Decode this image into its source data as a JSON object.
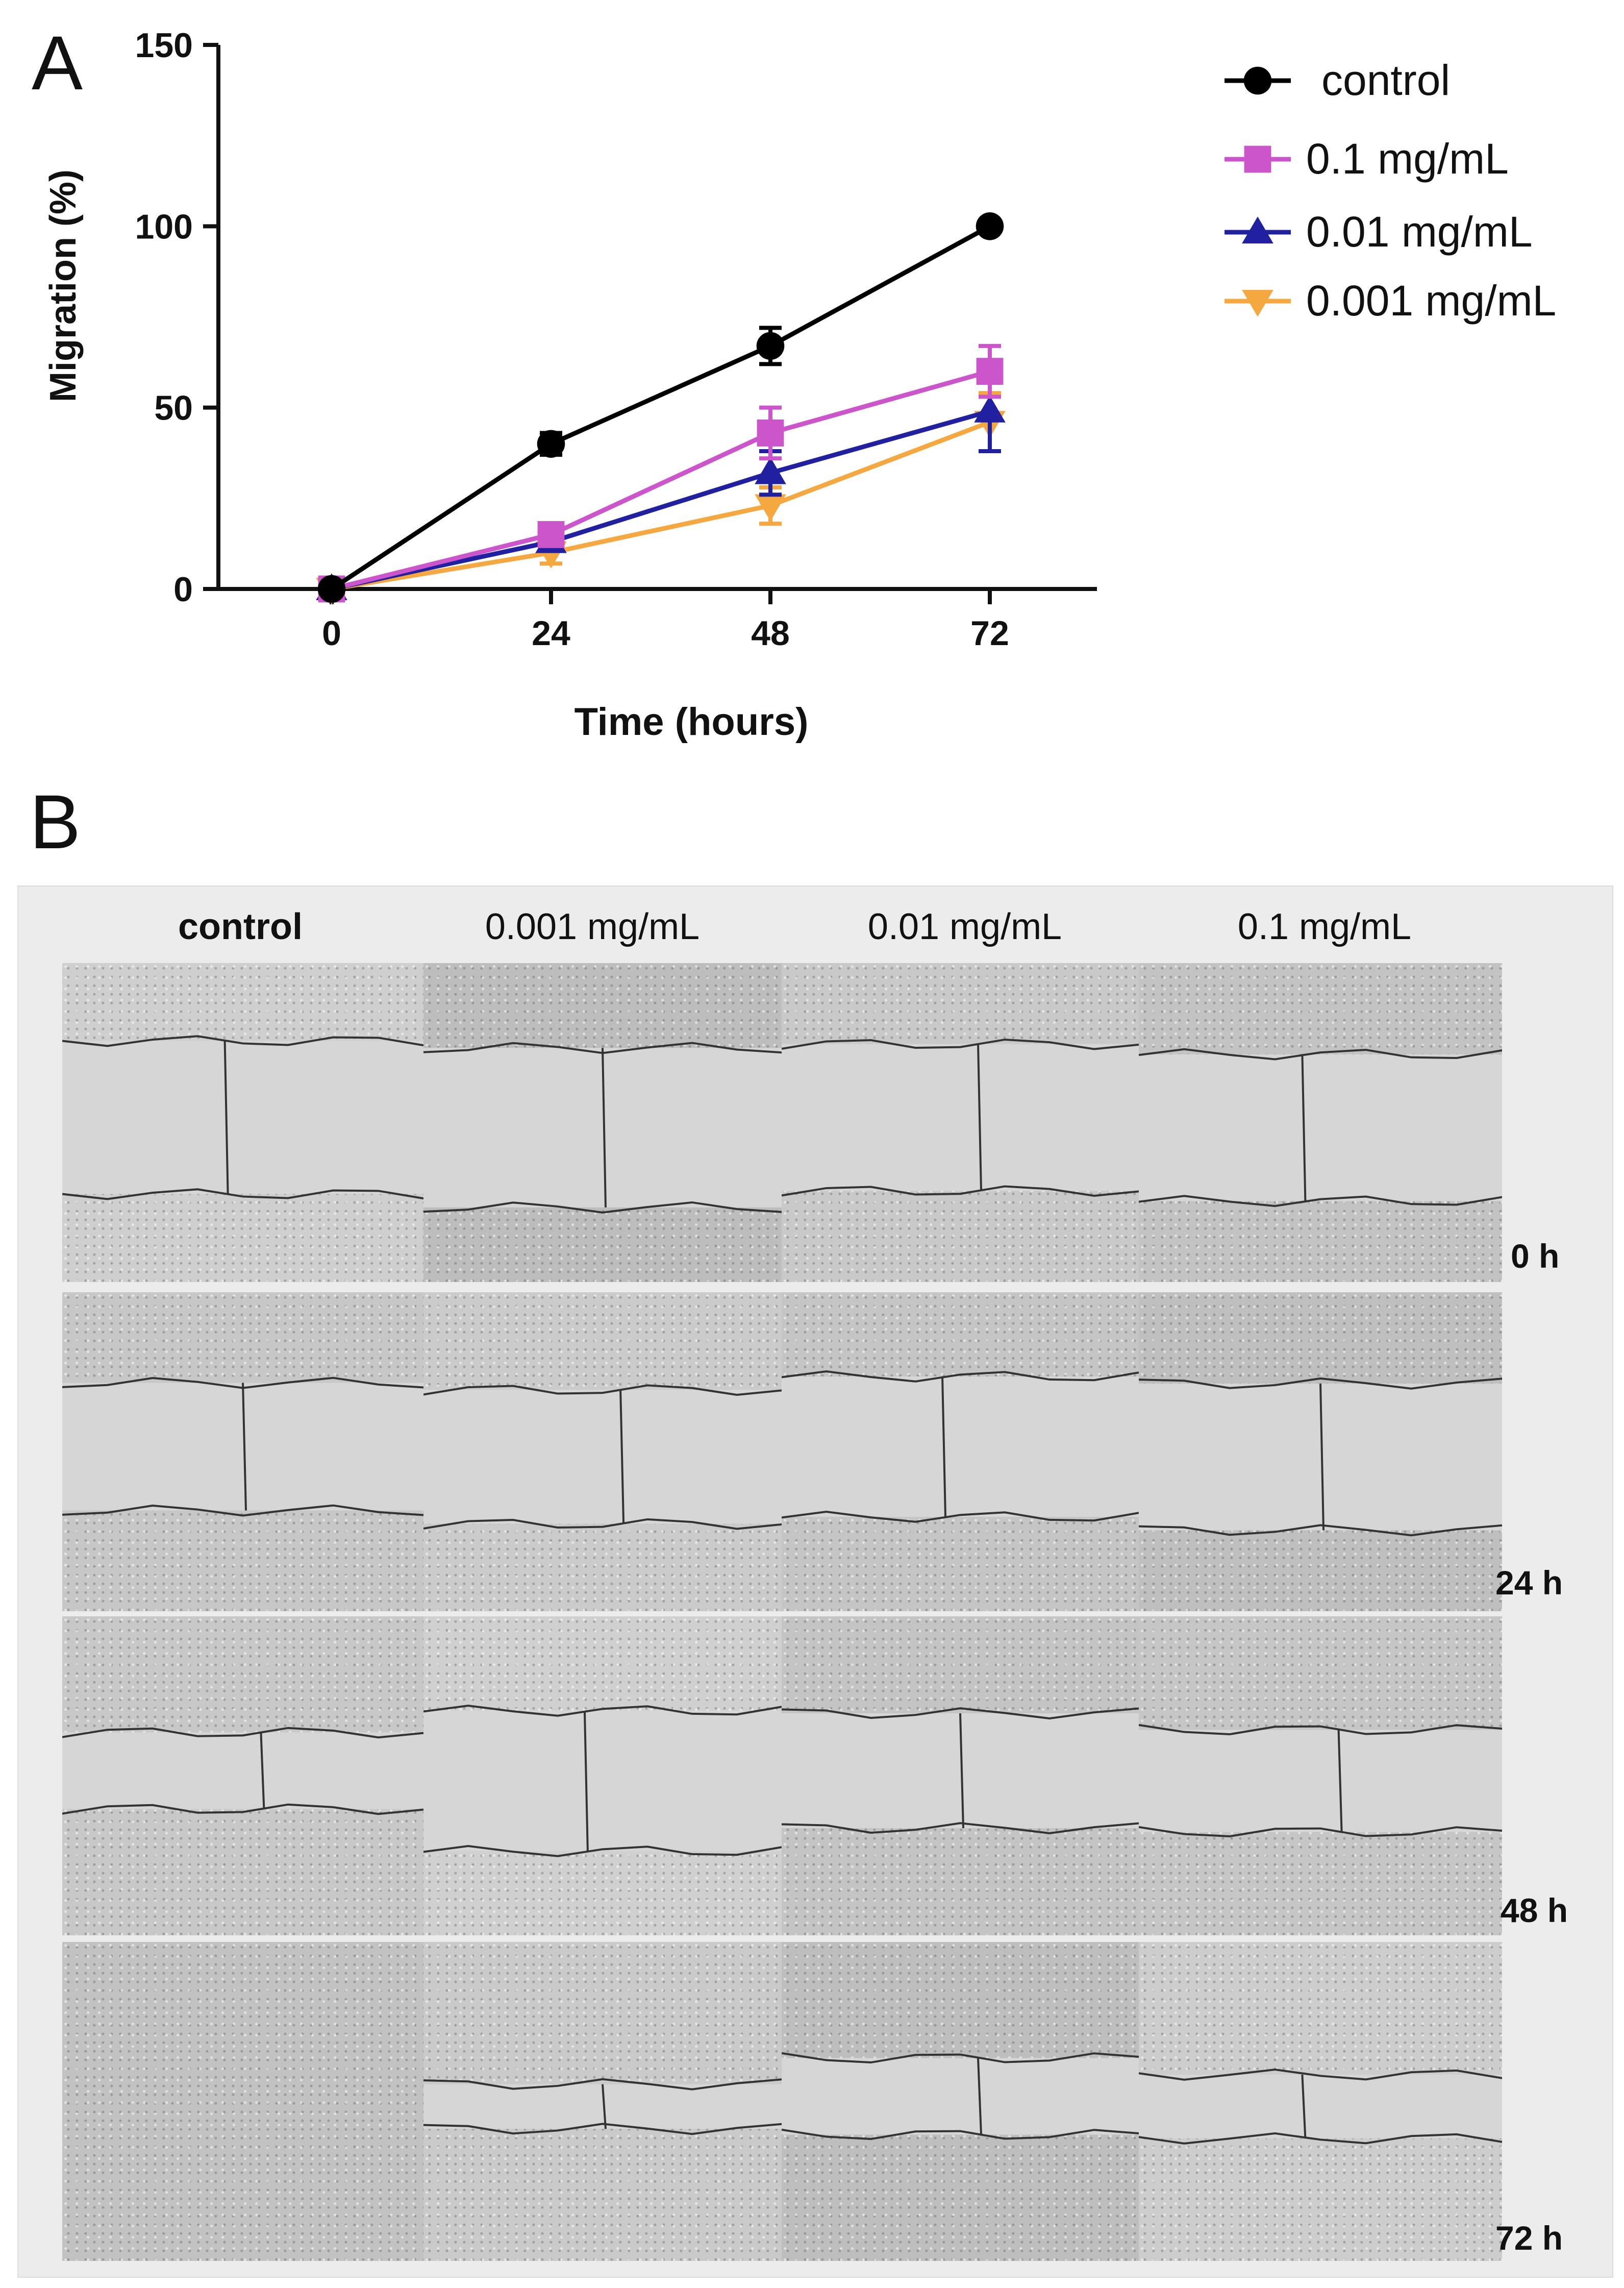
{
  "panel_a_label": "A",
  "panel_b_label": "B",
  "chart_data": {
    "type": "line",
    "title": "",
    "xlabel": "Time (hours)",
    "ylabel": "Migration (%)",
    "x": [
      0,
      24,
      48,
      72
    ],
    "x_ticks": [
      "0",
      "24",
      "48",
      "72"
    ],
    "y_ticks": [
      "0",
      "50",
      "100",
      "150"
    ],
    "ylim": [
      0,
      150
    ],
    "legend_position": "top-right",
    "series": [
      {
        "name": "control",
        "marker": "circle",
        "color": "#000000",
        "values": [
          0,
          40,
          67,
          100
        ],
        "errors": [
          0,
          3,
          5,
          0
        ]
      },
      {
        "name": "0.1 mg/mL",
        "marker": "square",
        "color": "#cc55cc",
        "values": [
          0,
          15,
          43,
          60
        ],
        "errors": [
          0,
          2,
          7,
          7
        ]
      },
      {
        "name": "0.01 mg/mL",
        "marker": "triangle-up",
        "color": "#2020a0",
        "values": [
          0,
          13,
          32,
          49
        ],
        "errors": [
          0,
          2,
          6,
          11
        ]
      },
      {
        "name": "0.001 mg/mL",
        "marker": "triangle-down",
        "color": "#f5a840",
        "values": [
          0,
          10,
          23,
          46
        ],
        "errors": [
          0,
          3,
          5,
          8
        ]
      }
    ]
  },
  "panel_b": {
    "columns": [
      "control",
      "0.001 mg/mL",
      "0.01 mg/mL",
      "0.1 mg/mL"
    ],
    "rows": [
      "0 h",
      "24 h",
      "48 h",
      "72 h"
    ]
  }
}
